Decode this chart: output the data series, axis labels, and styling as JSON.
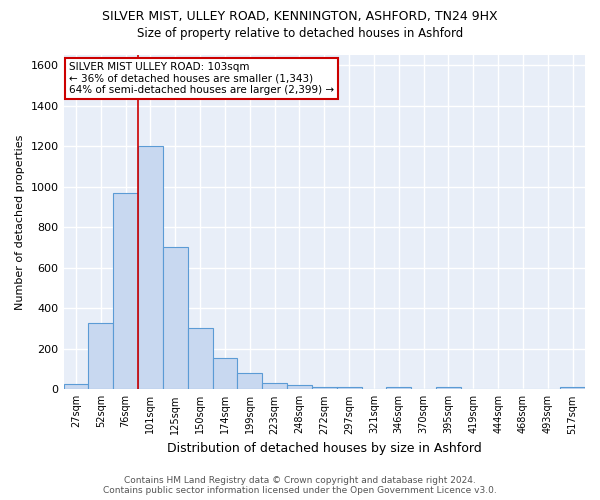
{
  "title": "SILVER MIST, ULLEY ROAD, KENNINGTON, ASHFORD, TN24 9HX",
  "subtitle": "Size of property relative to detached houses in Ashford",
  "xlabel": "Distribution of detached houses by size in Ashford",
  "ylabel": "Number of detached properties",
  "categories": [
    "27sqm",
    "52sqm",
    "76sqm",
    "101sqm",
    "125sqm",
    "150sqm",
    "174sqm",
    "199sqm",
    "223sqm",
    "248sqm",
    "272sqm",
    "297sqm",
    "321sqm",
    "346sqm",
    "370sqm",
    "395sqm",
    "419sqm",
    "444sqm",
    "468sqm",
    "493sqm",
    "517sqm"
  ],
  "values": [
    25,
    325,
    970,
    1200,
    700,
    305,
    155,
    80,
    30,
    20,
    12,
    12,
    0,
    12,
    0,
    12,
    0,
    0,
    0,
    0,
    12
  ],
  "bar_color": "#c8d8f0",
  "bar_edge_color": "#5b9bd5",
  "background_color": "#e8eef8",
  "grid_color": "#ffffff",
  "ylim": [
    0,
    1650
  ],
  "yticks": [
    0,
    200,
    400,
    600,
    800,
    1000,
    1200,
    1400,
    1600
  ],
  "annotation_text": "SILVER MIST ULLEY ROAD: 103sqm\n← 36% of detached houses are smaller (1,343)\n64% of semi-detached houses are larger (2,399) →",
  "annotation_box_color": "#ffffff",
  "annotation_box_edge": "#cc0000",
  "property_line_color": "#cc0000",
  "property_line_x": 2.5,
  "footer_line1": "Contains HM Land Registry data © Crown copyright and database right 2024.",
  "footer_line2": "Contains public sector information licensed under the Open Government Licence v3.0."
}
